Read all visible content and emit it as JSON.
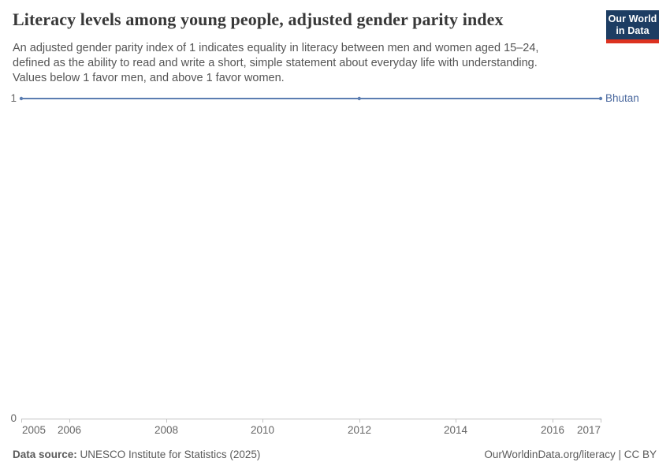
{
  "header": {
    "title": "Literacy levels among young people, adjusted gender parity index",
    "subtitle_lines": [
      "An adjusted gender parity index of 1 indicates equality in literacy between men and women aged 15–24,",
      "defined as the ability to read and write a short, simple statement about everyday life with understanding.",
      "Values below 1 favor men, and above 1 favor women."
    ],
    "logo": {
      "line1": "Our World",
      "line2": "in Data"
    },
    "logo_colors": {
      "background": "#1d3d63",
      "underline": "#dc3220"
    }
  },
  "chart_data": {
    "type": "line",
    "title": "Literacy levels among young people, adjusted gender parity index",
    "series": [
      {
        "name": "Bhutan",
        "color": "#5b7db1",
        "label_color": "#4a689e",
        "x": [
          2005,
          2012,
          2017
        ],
        "values": [
          1,
          1,
          1
        ]
      }
    ],
    "entity_label": "Bhutan",
    "x_ticks": [
      2005,
      2006,
      2008,
      2010,
      2012,
      2014,
      2016,
      2017
    ],
    "y_ticks": [
      0,
      1
    ],
    "x_range": [
      2005,
      2017
    ],
    "y_range": [
      0,
      1
    ],
    "xlabel": "",
    "ylabel": "",
    "grid": true,
    "legend_position": "right-of-line"
  },
  "footer": {
    "datasource_label": "Data source:",
    "datasource_value": " UNESCO Institute for Statistics (2025)",
    "rightside": "OurWorldinData.org/literacy | CC BY"
  }
}
